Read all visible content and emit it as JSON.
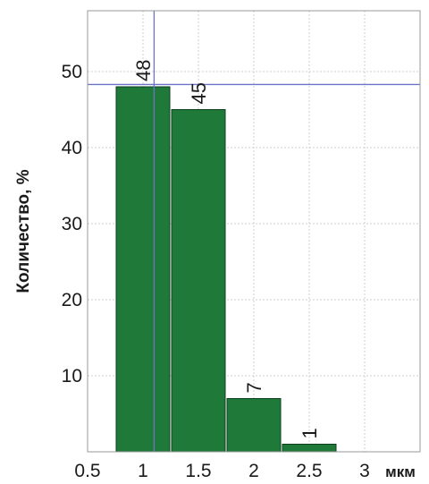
{
  "chart_data": {
    "type": "bar",
    "title": "",
    "ylabel": "Количество, %",
    "xlabel": "мкм",
    "bar_color": "#1f7a3a",
    "bar_edge_color": "#0e3f1d",
    "grid": true,
    "grid_color": "#cfcfcf",
    "xlim": [
      0.5,
      3.5
    ],
    "ylim": [
      0,
      58
    ],
    "x_ticks": [
      {
        "value": 0.5,
        "label": "0.5"
      },
      {
        "value": 1,
        "label": "1"
      },
      {
        "value": 1.5,
        "label": "1.5"
      },
      {
        "value": 2,
        "label": "2"
      },
      {
        "value": 2.5,
        "label": "2.5"
      },
      {
        "value": 3,
        "label": "3"
      }
    ],
    "y_ticks": [
      {
        "value": 10,
        "label": "10"
      },
      {
        "value": 20,
        "label": "20"
      },
      {
        "value": 30,
        "label": "30"
      },
      {
        "value": 40,
        "label": "40"
      },
      {
        "value": 50,
        "label": "50"
      }
    ],
    "bars": [
      {
        "x0": 0.75,
        "x1": 1.25,
        "value": 48,
        "label": "48"
      },
      {
        "x0": 1.25,
        "x1": 1.75,
        "value": 45,
        "label": "45"
      },
      {
        "x0": 1.75,
        "x1": 2.25,
        "value": 7,
        "label": "7"
      },
      {
        "x0": 2.25,
        "x1": 2.75,
        "value": 1,
        "label": "1"
      }
    ],
    "crosshair": {
      "x": 1.1,
      "y": 48.3,
      "color": "#6a74c8"
    }
  }
}
